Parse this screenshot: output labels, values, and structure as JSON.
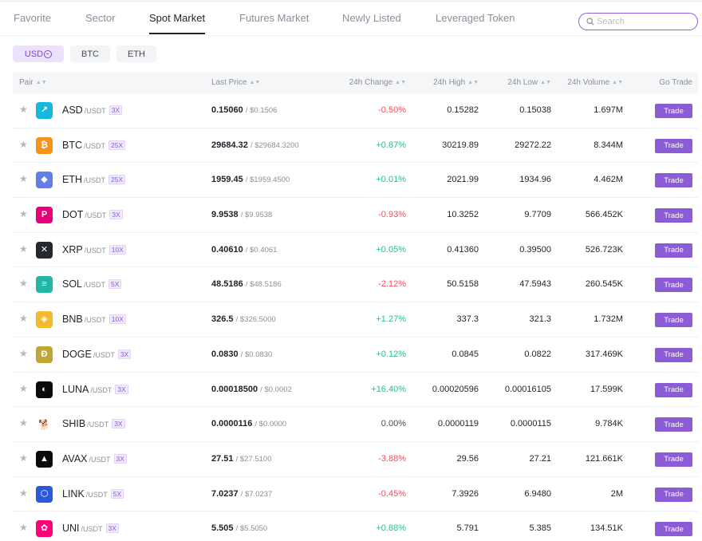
{
  "tabs": [
    {
      "label": "Favorite",
      "active": false
    },
    {
      "label": "Sector",
      "active": false
    },
    {
      "label": "Spot Market",
      "active": true
    },
    {
      "label": "Futures Market",
      "active": false
    },
    {
      "label": "Newly Listed",
      "active": false
    },
    {
      "label": "Leveraged Token",
      "active": false
    }
  ],
  "search": {
    "placeholder": "Search",
    "value": ""
  },
  "quote_filters": [
    {
      "label": "USD",
      "icon": "usd-coin-icon",
      "active": true
    },
    {
      "label": "BTC",
      "active": false
    },
    {
      "label": "ETH",
      "active": false
    }
  ],
  "columns": {
    "pair": "Pair",
    "last_price": "Last Price",
    "change": "24h Change",
    "high": "24h High",
    "low": "24h Low",
    "volume": "24h Volume",
    "go_trade": "Go Trade"
  },
  "colors": {
    "accent": "#8b5cd6",
    "up": "#2dbd85",
    "down": "#f0505c"
  },
  "trade_label": "Trade",
  "rows": [
    {
      "symbol": "ASD",
      "quote": "/USDT",
      "leverage": "3X",
      "icon": "asd-icon",
      "icon_bg": "#17b8e0",
      "icon_glyph": "↗",
      "price": "0.15060",
      "price_usd": "/ $0.1506",
      "change": "-0.50%",
      "dir": "down",
      "high": "0.15282",
      "low": "0.15038",
      "volume": "1.697M"
    },
    {
      "symbol": "BTC",
      "quote": "/USDT",
      "leverage": "25X",
      "icon": "bitcoin-icon",
      "icon_bg": "#f7931a",
      "icon_glyph": "₿",
      "price": "29684.32",
      "price_usd": "/ $29684.3200",
      "change": "+0.87%",
      "dir": "up",
      "high": "30219.89",
      "low": "29272.22",
      "volume": "8.344M"
    },
    {
      "symbol": "ETH",
      "quote": "/USDT",
      "leverage": "25X",
      "icon": "ethereum-icon",
      "icon_bg": "#627eea",
      "icon_glyph": "◆",
      "price": "1959.45",
      "price_usd": "/ $1959.4500",
      "change": "+0.01%",
      "dir": "up",
      "high": "2021.99",
      "low": "1934.96",
      "volume": "4.462M"
    },
    {
      "symbol": "DOT",
      "quote": "/USDT",
      "leverage": "3X",
      "icon": "polkadot-icon",
      "icon_bg": "#e6007a",
      "icon_glyph": "P",
      "price": "9.9538",
      "price_usd": "/ $9.9538",
      "change": "-0.93%",
      "dir": "down",
      "high": "10.3252",
      "low": "9.7709",
      "volume": "566.452K"
    },
    {
      "symbol": "XRP",
      "quote": "/USDT",
      "leverage": "10X",
      "icon": "xrp-icon",
      "icon_bg": "#23292f",
      "icon_glyph": "✕",
      "price": "0.40610",
      "price_usd": "/ $0.4061",
      "change": "+0.05%",
      "dir": "up",
      "high": "0.41360",
      "low": "0.39500",
      "volume": "526.723K"
    },
    {
      "symbol": "SOL",
      "quote": "/USDT",
      "leverage": "5X",
      "icon": "solana-icon",
      "icon_bg": "#24b5a5",
      "icon_glyph": "≡",
      "price": "48.5186",
      "price_usd": "/ $48.5186",
      "change": "-2.12%",
      "dir": "down",
      "high": "50.5158",
      "low": "47.5943",
      "volume": "260.545K"
    },
    {
      "symbol": "BNB",
      "quote": "/USDT",
      "leverage": "10X",
      "icon": "bnb-icon",
      "icon_bg": "#f3ba2f",
      "icon_glyph": "◈",
      "price": "326.5",
      "price_usd": "/ $326.5000",
      "change": "+1.27%",
      "dir": "up",
      "high": "337.3",
      "low": "321.3",
      "volume": "1.732M"
    },
    {
      "symbol": "DOGE",
      "quote": "/USDT",
      "leverage": "3X",
      "icon": "dogecoin-icon",
      "icon_bg": "#c2a633",
      "icon_glyph": "Ð",
      "price": "0.0830",
      "price_usd": "/ $0.0830",
      "change": "+0.12%",
      "dir": "up",
      "high": "0.0845",
      "low": "0.0822",
      "volume": "317.469K"
    },
    {
      "symbol": "LUNA",
      "quote": "/USDT",
      "leverage": "3X",
      "icon": "luna-icon",
      "icon_bg": "#0b0b0b",
      "icon_glyph": "◐",
      "price": "0.00018500",
      "price_usd": "/ $0.0002",
      "change": "+16.40%",
      "dir": "up",
      "high": "0.00020596",
      "low": "0.00016105",
      "volume": "17.599K"
    },
    {
      "symbol": "SHIB",
      "quote": "/USDT",
      "leverage": "3X",
      "icon": "shiba-icon",
      "icon_bg": "#ffffff",
      "icon_glyph": "🐕",
      "price": "0.0000116",
      "price_usd": "/ $0.0000",
      "change": "0.00%",
      "dir": "flat",
      "high": "0.0000119",
      "low": "0.0000115",
      "volume": "9.784K"
    },
    {
      "symbol": "AVAX",
      "quote": "/USDT",
      "leverage": "3X",
      "icon": "avalanche-icon",
      "icon_bg": "#0b0b0b",
      "icon_glyph": "▲",
      "price": "27.51",
      "price_usd": "/ $27.5100",
      "change": "-3.88%",
      "dir": "down",
      "high": "29.56",
      "low": "27.21",
      "volume": "121.661K"
    },
    {
      "symbol": "LINK",
      "quote": "/USDT",
      "leverage": "5X",
      "icon": "chainlink-icon",
      "icon_bg": "#2a5ada",
      "icon_glyph": "⬡",
      "price": "7.0237",
      "price_usd": "/ $7.0237",
      "change": "-0.45%",
      "dir": "down",
      "high": "7.3926",
      "low": "6.9480",
      "volume": "2M"
    },
    {
      "symbol": "UNI",
      "quote": "/USDT",
      "leverage": "3X",
      "icon": "uniswap-icon",
      "icon_bg": "#ff007a",
      "icon_glyph": "✿",
      "price": "5.505",
      "price_usd": "/ $5.5050",
      "change": "+0.88%",
      "dir": "up",
      "high": "5.791",
      "low": "5.385",
      "volume": "134.51K"
    }
  ]
}
